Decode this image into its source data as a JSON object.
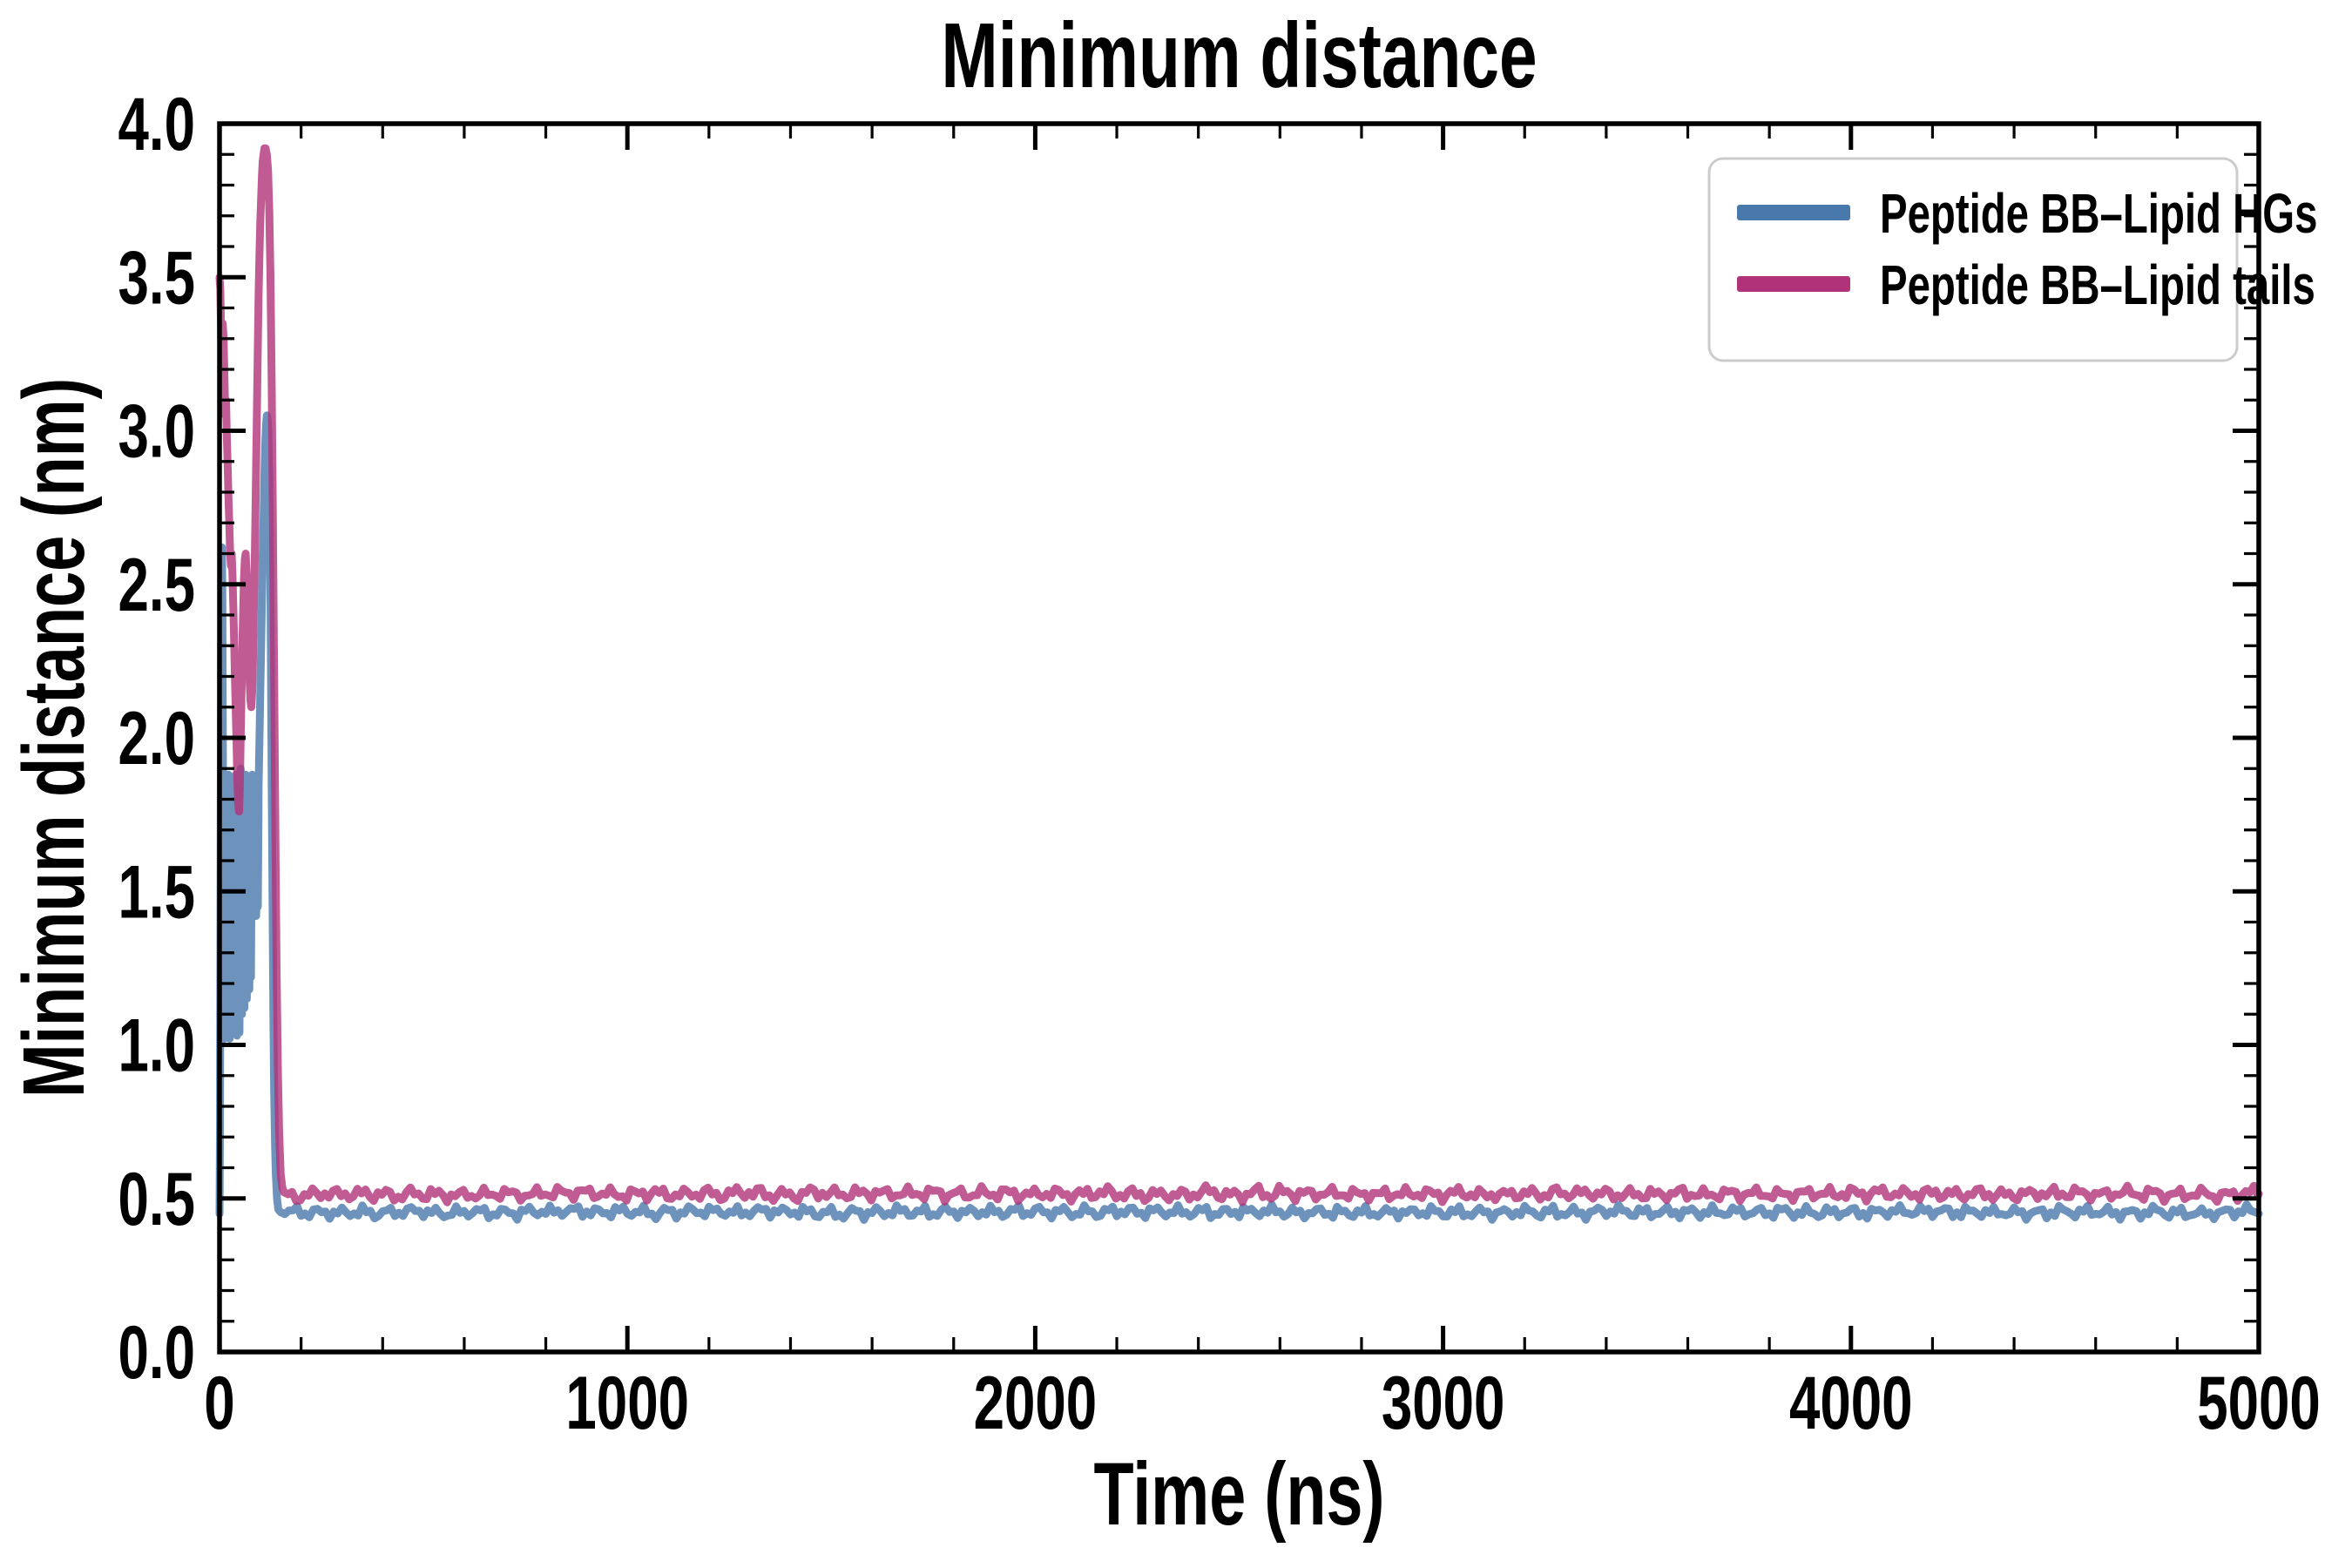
{
  "figure": {
    "background": "#ffffff",
    "text_color": "#000000",
    "spine_color": "#000000"
  },
  "chart_data": {
    "type": "line",
    "title": "Minimum distance",
    "xlabel": "Time (ns)",
    "ylabel": "Minimum distance (nm)",
    "xlim": [
      0,
      5000
    ],
    "ylim": [
      0.0,
      4.0
    ],
    "grid": false,
    "x_major_ticks": [
      0,
      1000,
      2000,
      3000,
      4000,
      5000
    ],
    "x_tick_labels": [
      "0",
      "1000",
      "2000",
      "3000",
      "4000",
      "5000"
    ],
    "x_minor_step": 200,
    "y_major_ticks": [
      0.0,
      0.5,
      1.0,
      1.5,
      2.0,
      2.5,
      3.0,
      3.5,
      4.0
    ],
    "y_tick_labels": [
      "0.0",
      "0.5",
      "1.0",
      "1.5",
      "2.0",
      "2.5",
      "3.0",
      "3.5",
      "4.0"
    ],
    "y_minor_step": 0.1,
    "legend": {
      "position": "upper right",
      "border_color": "#cccccc",
      "fill": "#ffffff",
      "entries": [
        {
          "label": "Peptide BB–Lipid HGs",
          "color": "#4878AC"
        },
        {
          "label": "Peptide BB–Lipid tails",
          "color": "#B03278"
        }
      ]
    },
    "series": [
      {
        "name": "Peptide BB–Lipid HGs",
        "color": "#4878AC",
        "opacity": 0.8,
        "description": "starts ~0.45 nm, oscillates 1.0–2.6 nm until ~100 ns, peaks at ~3.05 nm near 118 ns, drops sharply and stays flat at ~0.455 nm until 5000 ns",
        "early_points": [
          [
            0,
            0.45
          ],
          [
            1,
            0.7
          ],
          [
            2,
            1.2
          ],
          [
            3,
            1.8
          ],
          [
            4,
            2.3
          ],
          [
            5,
            2.55
          ],
          [
            6,
            2.62
          ],
          [
            7,
            2.45
          ],
          [
            8,
            2.1
          ],
          [
            9,
            1.7
          ],
          [
            10,
            1.3
          ],
          [
            11,
            1.06
          ],
          [
            12,
            1.02
          ],
          [
            13,
            1.3
          ],
          [
            14,
            1.65
          ],
          [
            15,
            1.85
          ],
          [
            16,
            1.6
          ],
          [
            17,
            1.25
          ],
          [
            18,
            1.03
          ],
          [
            19,
            1.1
          ],
          [
            20,
            1.45
          ],
          [
            21,
            1.78
          ],
          [
            22,
            1.88
          ],
          [
            23,
            1.55
          ],
          [
            24,
            1.18
          ],
          [
            25,
            1.02
          ],
          [
            26,
            1.2
          ],
          [
            27,
            1.55
          ],
          [
            28,
            1.8
          ],
          [
            29,
            1.62
          ],
          [
            30,
            1.3
          ],
          [
            31,
            1.08
          ],
          [
            32,
            1.25
          ],
          [
            33,
            1.6
          ],
          [
            34,
            1.82
          ],
          [
            35,
            1.55
          ],
          [
            36,
            1.2
          ],
          [
            37,
            1.05
          ],
          [
            38,
            1.3
          ],
          [
            39,
            1.68
          ],
          [
            40,
            1.88
          ],
          [
            41,
            1.6
          ],
          [
            42,
            1.22
          ],
          [
            43,
            1.03
          ],
          [
            44,
            1.18
          ],
          [
            45,
            1.5
          ],
          [
            46,
            1.75
          ],
          [
            47,
            1.5
          ],
          [
            48,
            1.15
          ],
          [
            49,
            1.04
          ],
          [
            50,
            1.35
          ],
          [
            51,
            1.7
          ],
          [
            52,
            1.9
          ],
          [
            53,
            1.65
          ],
          [
            54,
            1.32
          ],
          [
            55,
            1.1
          ],
          [
            56,
            1.28
          ],
          [
            57,
            1.6
          ],
          [
            58,
            1.85
          ],
          [
            59,
            1.6
          ],
          [
            60,
            1.3
          ],
          [
            61,
            1.12
          ],
          [
            62,
            1.35
          ],
          [
            63,
            1.65
          ],
          [
            64,
            1.88
          ],
          [
            65,
            1.62
          ],
          [
            66,
            1.35
          ],
          [
            67,
            1.15
          ],
          [
            68,
            1.32
          ],
          [
            69,
            1.6
          ],
          [
            70,
            1.8
          ],
          [
            71,
            1.58
          ],
          [
            72,
            1.3
          ],
          [
            73,
            1.18
          ],
          [
            74,
            1.4
          ],
          [
            75,
            1.65
          ],
          [
            76,
            1.45
          ],
          [
            77,
            1.22
          ],
          [
            78,
            1.42
          ],
          [
            79,
            1.7
          ],
          [
            80,
            1.88
          ],
          [
            81,
            1.65
          ],
          [
            82,
            1.42
          ],
          [
            83,
            1.6
          ],
          [
            84,
            1.85
          ],
          [
            85,
            1.65
          ],
          [
            86,
            1.45
          ],
          [
            87,
            1.62
          ],
          [
            88,
            1.82
          ],
          [
            89,
            1.6
          ],
          [
            90,
            1.42
          ],
          [
            91,
            1.6
          ],
          [
            92,
            1.8
          ],
          [
            93,
            1.6
          ],
          [
            94,
            1.45
          ],
          [
            95,
            1.65
          ],
          [
            96,
            1.85
          ],
          [
            98,
            2.0
          ],
          [
            100,
            2.15
          ],
          [
            102,
            2.3
          ],
          [
            104,
            2.45
          ],
          [
            106,
            2.6
          ],
          [
            108,
            2.72
          ],
          [
            110,
            2.85
          ],
          [
            112,
            2.95
          ],
          [
            114,
            3.02
          ],
          [
            116,
            3.05
          ],
          [
            118,
            3.04
          ],
          [
            120,
            2.98
          ],
          [
            122,
            2.85
          ],
          [
            124,
            2.6
          ],
          [
            126,
            2.25
          ],
          [
            128,
            1.85
          ],
          [
            130,
            1.45
          ],
          [
            132,
            1.1
          ],
          [
            134,
            0.85
          ],
          [
            136,
            0.68
          ],
          [
            138,
            0.58
          ],
          [
            141,
            0.5
          ],
          [
            144,
            0.465
          ],
          [
            148,
            0.458
          ],
          [
            150,
            0.455
          ]
        ],
        "flat_tail": {
          "from": 150,
          "to": 5000,
          "step": 10,
          "mean": 0.455,
          "amp1": 0.012,
          "period1": 57,
          "amp2": 0.01,
          "period2": 23,
          "jitter": 0.008,
          "seed": 7
        }
      },
      {
        "name": "Peptide BB–Lipid tails",
        "color": "#B03278",
        "opacity": 0.8,
        "description": "starts ~3.5 nm, wanders 1.8–3.5 nm, peaks at ~3.92 nm near 112 ns, drops sharply and stays flat at ~0.515 nm until 5000 ns",
        "early_points": [
          [
            0,
            3.5
          ],
          [
            2,
            3.46
          ],
          [
            4,
            3.3
          ],
          [
            6,
            3.22
          ],
          [
            8,
            3.35
          ],
          [
            10,
            3.3
          ],
          [
            12,
            3.18
          ],
          [
            14,
            3.05
          ],
          [
            16,
            3.1
          ],
          [
            18,
            2.98
          ],
          [
            20,
            2.88
          ],
          [
            22,
            2.78
          ],
          [
            24,
            2.7
          ],
          [
            26,
            2.6
          ],
          [
            28,
            2.56
          ],
          [
            30,
            2.6
          ],
          [
            32,
            2.52
          ],
          [
            34,
            2.42
          ],
          [
            36,
            2.3
          ],
          [
            38,
            2.18
          ],
          [
            40,
            2.08
          ],
          [
            42,
            1.96
          ],
          [
            44,
            1.85
          ],
          [
            46,
            1.78
          ],
          [
            48,
            1.76
          ],
          [
            50,
            1.85
          ],
          [
            52,
            2.0
          ],
          [
            54,
            2.15
          ],
          [
            56,
            2.3
          ],
          [
            58,
            2.42
          ],
          [
            60,
            2.52
          ],
          [
            62,
            2.58
          ],
          [
            64,
            2.6
          ],
          [
            66,
            2.55
          ],
          [
            68,
            2.48
          ],
          [
            70,
            2.38
          ],
          [
            72,
            2.28
          ],
          [
            74,
            2.18
          ],
          [
            76,
            2.12
          ],
          [
            78,
            2.1
          ],
          [
            80,
            2.15
          ],
          [
            82,
            2.25
          ],
          [
            84,
            2.4
          ],
          [
            86,
            2.55
          ],
          [
            88,
            2.72
          ],
          [
            90,
            2.9
          ],
          [
            92,
            3.1
          ],
          [
            94,
            3.28
          ],
          [
            96,
            3.45
          ],
          [
            98,
            3.58
          ],
          [
            100,
            3.68
          ],
          [
            102,
            3.76
          ],
          [
            104,
            3.83
          ],
          [
            106,
            3.88
          ],
          [
            108,
            3.9
          ],
          [
            110,
            3.92
          ],
          [
            113,
            3.92
          ],
          [
            116,
            3.9
          ],
          [
            119,
            3.85
          ],
          [
            122,
            3.72
          ],
          [
            125,
            3.5
          ],
          [
            128,
            3.15
          ],
          [
            131,
            2.7
          ],
          [
            134,
            2.2
          ],
          [
            137,
            1.7
          ],
          [
            140,
            1.25
          ],
          [
            143,
            0.92
          ],
          [
            146,
            0.72
          ],
          [
            150,
            0.58
          ],
          [
            154,
            0.535
          ],
          [
            158,
            0.52
          ]
        ],
        "flat_tail": {
          "from": 158,
          "to": 5000,
          "step": 10,
          "mean": 0.515,
          "amp1": 0.013,
          "period1": 61,
          "amp2": 0.011,
          "period2": 26,
          "jitter": 0.009,
          "seed": 13
        }
      }
    ]
  }
}
